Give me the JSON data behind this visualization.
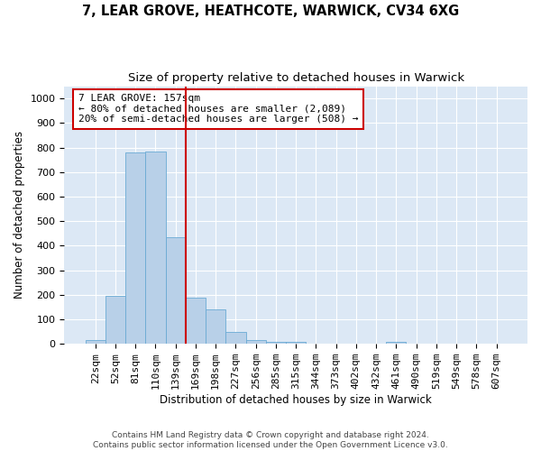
{
  "title": "7, LEAR GROVE, HEATHCOTE, WARWICK, CV34 6XG",
  "subtitle": "Size of property relative to detached houses in Warwick",
  "xlabel": "Distribution of detached houses by size in Warwick",
  "ylabel": "Number of detached properties",
  "categories": [
    "22sqm",
    "52sqm",
    "81sqm",
    "110sqm",
    "139sqm",
    "169sqm",
    "198sqm",
    "227sqm",
    "256sqm",
    "285sqm",
    "315sqm",
    "344sqm",
    "373sqm",
    "402sqm",
    "432sqm",
    "461sqm",
    "490sqm",
    "519sqm",
    "549sqm",
    "578sqm",
    "607sqm"
  ],
  "values": [
    15,
    195,
    780,
    785,
    435,
    190,
    140,
    48,
    15,
    10,
    10,
    0,
    0,
    0,
    0,
    10,
    0,
    0,
    0,
    0,
    0
  ],
  "bar_color": "#b8d0e8",
  "bar_edge_color": "#6aaad4",
  "vline_x": 4.5,
  "vline_color": "#cc0000",
  "annotation_text": "7 LEAR GROVE: 157sqm\n← 80% of detached houses are smaller (2,089)\n20% of semi-detached houses are larger (508) →",
  "annotation_box_color": "#ffffff",
  "annotation_box_edge": "#cc0000",
  "ylim": [
    0,
    1050
  ],
  "yticks": [
    0,
    100,
    200,
    300,
    400,
    500,
    600,
    700,
    800,
    900,
    1000
  ],
  "background_color": "#dce8f5",
  "footer_text": "Contains HM Land Registry data © Crown copyright and database right 2024.\nContains public sector information licensed under the Open Government Licence v3.0.",
  "title_fontsize": 10.5,
  "subtitle_fontsize": 9.5,
  "xlabel_fontsize": 8.5,
  "ylabel_fontsize": 8.5,
  "tick_fontsize": 8,
  "annotation_fontsize": 8,
  "footer_fontsize": 6.5
}
